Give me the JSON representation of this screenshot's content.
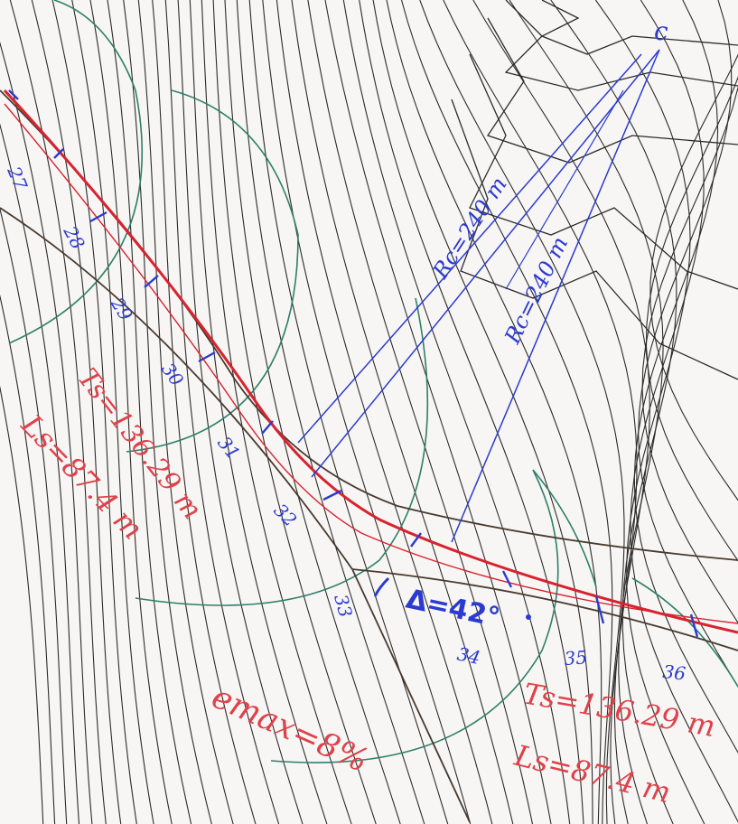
{
  "colors": {
    "paper": "#f7f6f4",
    "contour": "#2b2b2b",
    "alignment": "#d8232f",
    "tangent": "#4a3a30",
    "blue": "#2b3bd0",
    "arc": "#2f7f6a",
    "red_text": "#e0414a"
  },
  "labels": {
    "center": "c",
    "radius_1": "Rc=240 m",
    "radius_2": "Rc=240 m",
    "delta": "Δ=42°",
    "ts_left": "Ts=136.29 m",
    "ls_left": "Ls=87.4 m",
    "ts_right": "Ts=136.29 m",
    "ls_right": "Ls=87.4 m",
    "emax": "emax=8%"
  },
  "stations": [
    {
      "label": "27"
    },
    {
      "label": "28"
    },
    {
      "label": "29"
    },
    {
      "label": "30"
    },
    {
      "label": "31"
    },
    {
      "label": "32"
    },
    {
      "label": "33"
    },
    {
      "label": "34"
    },
    {
      "label": "35"
    },
    {
      "label": "36"
    }
  ]
}
